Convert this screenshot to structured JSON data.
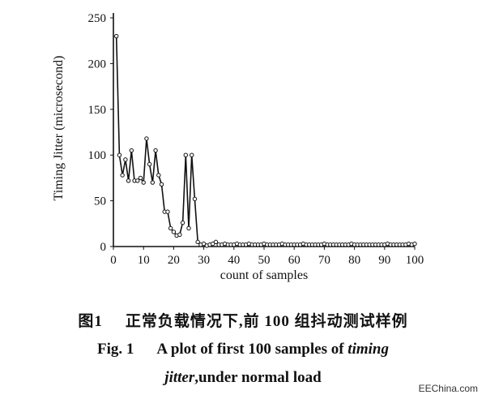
{
  "chart_data": {
    "type": "line",
    "title": "",
    "xlabel": "count of samples",
    "ylabel": "Timing Jitter (microsecond)",
    "xlim": [
      0,
      100
    ],
    "ylim": [
      0,
      250
    ],
    "xticks": [
      0,
      10,
      20,
      30,
      40,
      50,
      60,
      70,
      80,
      90,
      100
    ],
    "yticks": [
      0,
      50,
      100,
      150,
      200,
      250
    ],
    "grid": false,
    "x": [
      1,
      2,
      3,
      4,
      5,
      6,
      7,
      8,
      9,
      10,
      11,
      12,
      13,
      14,
      15,
      16,
      17,
      18,
      19,
      20,
      21,
      22,
      23,
      24,
      25,
      26,
      27,
      28,
      29,
      30,
      31,
      32,
      33,
      34,
      35,
      36,
      37,
      38,
      39,
      40,
      41,
      42,
      43,
      44,
      45,
      46,
      47,
      48,
      49,
      50,
      51,
      52,
      53,
      54,
      55,
      56,
      57,
      58,
      59,
      60,
      61,
      62,
      63,
      64,
      65,
      66,
      67,
      68,
      69,
      70,
      71,
      72,
      73,
      74,
      75,
      76,
      77,
      78,
      79,
      80,
      81,
      82,
      83,
      84,
      85,
      86,
      87,
      88,
      89,
      90,
      91,
      92,
      93,
      94,
      95,
      96,
      97,
      98,
      99,
      100
    ],
    "series": [
      {
        "values": [
          230,
          100,
          78,
          95,
          72,
          105,
          72,
          72,
          75,
          70,
          118,
          90,
          70,
          105,
          78,
          68,
          38,
          38,
          20,
          16,
          12,
          13,
          26,
          100,
          20,
          100,
          52,
          5,
          2,
          3,
          1,
          2,
          3,
          5,
          2,
          2,
          3,
          2,
          2,
          2,
          3,
          2,
          2,
          2,
          3,
          2,
          2,
          2,
          2,
          3,
          2,
          2,
          2,
          2,
          2,
          3,
          2,
          2,
          2,
          2,
          2,
          2,
          3,
          2,
          2,
          2,
          2,
          2,
          2,
          3,
          2,
          2,
          2,
          2,
          2,
          2,
          2,
          2,
          3,
          2,
          2,
          2,
          2,
          2,
          2,
          2,
          2,
          2,
          2,
          2,
          3,
          2,
          2,
          2,
          2,
          2,
          2,
          3,
          2,
          3
        ]
      }
    ]
  },
  "captions": {
    "cn_num": "图1",
    "cn_text": "正常负载情况下,前 100 组抖动测试样例",
    "en1_num": "Fig. 1",
    "en1_text_a": "A plot of first 100 samples of ",
    "en1_text_b": "timing",
    "en2_text_a": "jitter",
    "en2_text_b": ",under normal load"
  },
  "watermark": "EEChina.com"
}
